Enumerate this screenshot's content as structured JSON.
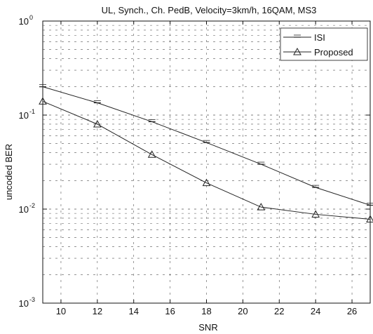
{
  "chart_data": {
    "type": "line",
    "title": "UL, Synch., Ch. PedB, Velocity=3km/h, 16QAM, MS3",
    "xlabel": "SNR",
    "ylabel": "uncoded BER",
    "xlim": [
      9,
      27
    ],
    "ylim": [
      0.001,
      1
    ],
    "yscale": "log",
    "grid": true,
    "legend_position": "top-right",
    "x_ticks": [
      10,
      12,
      14,
      16,
      18,
      20,
      22,
      24,
      26
    ],
    "x_tick_labels": [
      "10",
      "12",
      "14",
      "16",
      "18",
      "20",
      "22",
      "24",
      "26"
    ],
    "y_ticks": [
      0.001,
      0.01,
      0.1,
      1
    ],
    "y_tick_labels": [
      {
        "base": "10",
        "exp": "-3"
      },
      {
        "base": "10",
        "exp": "-2"
      },
      {
        "base": "10",
        "exp": "-1"
      },
      {
        "base": "10",
        "exp": "0"
      }
    ],
    "series": [
      {
        "name": "ISI",
        "marker": "bar",
        "x": [
          9,
          12,
          15,
          18,
          21,
          24,
          27
        ],
        "y": [
          0.2,
          0.135,
          0.085,
          0.051,
          0.03,
          0.017,
          0.011
        ]
      },
      {
        "name": "Proposed",
        "marker": "triangle",
        "x": [
          9,
          12,
          15,
          18,
          21,
          24,
          27
        ],
        "y": [
          0.14,
          0.08,
          0.038,
          0.019,
          0.0105,
          0.0088,
          0.0078
        ]
      }
    ],
    "colors": {
      "line": "#222222",
      "grid": "#555555",
      "axis": "#111111"
    }
  }
}
